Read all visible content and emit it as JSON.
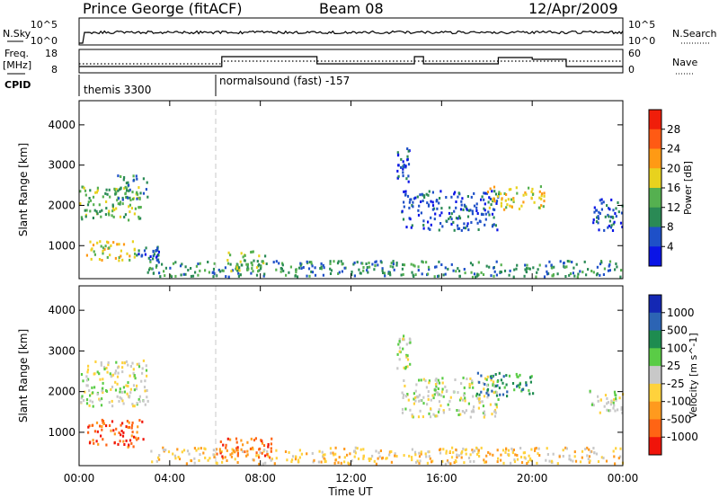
{
  "header": {
    "site": "Prince George (fitACF)",
    "beam": "Beam 08",
    "date": "12/Apr/2009"
  },
  "left_labels": {
    "nsky": "N.Sky",
    "freq_top": "Freq.",
    "freq_unit": "[MHz]",
    "cpid": "CPID"
  },
  "right_labels": {
    "nsearch": "N.Search",
    "nave": "Nave"
  },
  "strip_ticks": {
    "noise_left": [
      "10^5",
      "10^0"
    ],
    "noise_right": [
      "10^5",
      "10^0"
    ],
    "freq_left": [
      "18",
      "8"
    ],
    "nave_right": [
      "60",
      "0"
    ]
  },
  "cpid_programs": [
    {
      "name": "themis 3300",
      "start_hour": 0,
      "end_hour": 6
    },
    {
      "name": "normalsound (fast) -157",
      "start_hour": 6,
      "end_hour": 24
    }
  ],
  "x_axis": {
    "label": "Time UT",
    "ticks": [
      "00:00",
      "04:00",
      "08:00",
      "12:00",
      "16:00",
      "20:00",
      "00:00"
    ],
    "tick_hours": [
      0,
      4,
      8,
      12,
      16,
      20,
      24
    ]
  },
  "chart_data": [
    {
      "type": "heatmap",
      "title": "Power",
      "xlabel": "Time UT",
      "ylabel": "Slant Range [km]",
      "xlim": [
        0,
        24
      ],
      "ylim": [
        180,
        4600
      ],
      "yticks": [
        1000,
        2000,
        3000,
        4000
      ],
      "colorbar": {
        "label": "Power [dB]",
        "ticks": [
          "4",
          "8",
          "12",
          "16",
          "20",
          "24",
          "28"
        ],
        "colors": [
          "#0a14e6",
          "#1e50c8",
          "#2a8a55",
          "#55b050",
          "#e8d21e",
          "#ff9a14",
          "#ff5a14",
          "#f01e0a"
        ]
      },
      "regions": [
        {
          "t": [
            0.0,
            2.8
          ],
          "r": [
            1650,
            2500
          ],
          "level": 3
        },
        {
          "t": [
            1.5,
            3.0
          ],
          "r": [
            2150,
            2800
          ],
          "level": 2
        },
        {
          "t": [
            0.3,
            2.5
          ],
          "r": [
            650,
            1150
          ],
          "level": 4
        },
        {
          "t": [
            2.5,
            3.5
          ],
          "r": [
            650,
            1000
          ],
          "level": 1
        },
        {
          "t": [
            3.0,
            24.0
          ],
          "r": [
            250,
            650
          ],
          "level": 2
        },
        {
          "t": [
            6.5,
            8.5
          ],
          "r": [
            400,
            900
          ],
          "level": 3
        },
        {
          "t": [
            14.2,
            18.5
          ],
          "r": [
            1400,
            2400
          ],
          "level": 1
        },
        {
          "t": [
            18.0,
            20.5
          ],
          "r": [
            1900,
            2500
          ],
          "level": 4
        },
        {
          "t": [
            22.5,
            24.0
          ],
          "r": [
            1400,
            2200
          ],
          "level": 1
        },
        {
          "t": [
            14.0,
            14.6
          ],
          "r": [
            2600,
            3500
          ],
          "level": 1
        }
      ]
    },
    {
      "type": "heatmap",
      "title": "Velocity",
      "xlabel": "Time UT",
      "ylabel": "Slant Range [km]",
      "xlim": [
        0,
        24
      ],
      "ylim": [
        180,
        4600
      ],
      "yticks": [
        1000,
        2000,
        3000,
        4000
      ],
      "colorbar": {
        "label": "Velocity [m s^-1]",
        "ticks": [
          "1000",
          "500",
          "100",
          "25",
          "-25",
          "-100",
          "-500",
          "-1000"
        ],
        "colors": [
          "#1428b4",
          "#2c64b4",
          "#1e8c50",
          "#5acc46",
          "#c8c8c8",
          "#ffd23c",
          "#ff9a1e",
          "#ff6414",
          "#f0140a"
        ]
      },
      "regions": [
        {
          "t": [
            0.0,
            3.0
          ],
          "r": [
            1650,
            2800
          ],
          "level": 4
        },
        {
          "t": [
            0.3,
            2.8
          ],
          "r": [
            650,
            1350
          ],
          "level": 7
        },
        {
          "t": [
            3.0,
            24.0
          ],
          "r": [
            250,
            650
          ],
          "level": 5
        },
        {
          "t": [
            6.0,
            8.5
          ],
          "r": [
            400,
            900
          ],
          "level": 7
        },
        {
          "t": [
            14.2,
            18.5
          ],
          "r": [
            1400,
            2400
          ],
          "level": 4
        },
        {
          "t": [
            17.5,
            20.0
          ],
          "r": [
            1900,
            2500
          ],
          "level": 2
        },
        {
          "t": [
            22.5,
            24.0
          ],
          "r": [
            1500,
            2100
          ],
          "level": 4
        },
        {
          "t": [
            14.0,
            14.6
          ],
          "r": [
            2600,
            3500
          ],
          "level": 4
        }
      ]
    }
  ]
}
